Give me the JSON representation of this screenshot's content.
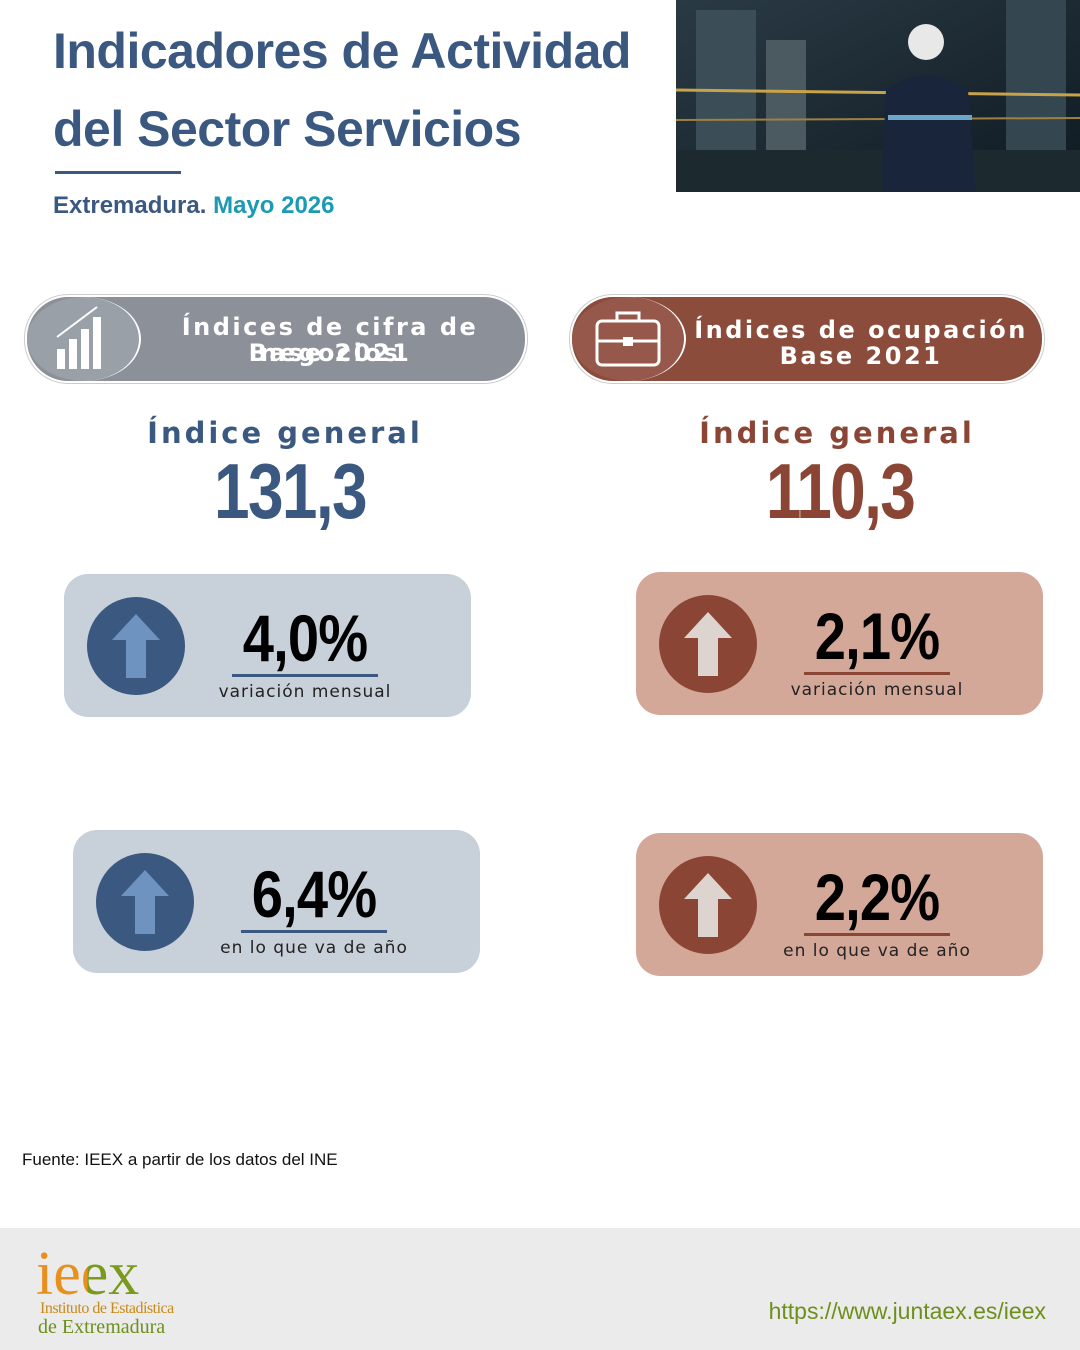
{
  "header": {
    "title_lines": [
      "Indicadores de Actividad",
      "del Sector Servicios"
    ],
    "region": "Extremadura.",
    "period": "Mayo 2026"
  },
  "panels": [
    {
      "heading": [
        "Índices de cifra de negocios",
        "Base 2021"
      ],
      "index_label": "Índice general",
      "index_value": "131,3",
      "cards": [
        {
          "value": "4,0%",
          "label": "variación mensual"
        },
        {
          "value": "6,4%",
          "label": "en lo que va de año"
        }
      ]
    },
    {
      "heading": [
        "Índices de ocupación",
        "Base 2021"
      ],
      "index_label": "Índice general",
      "index_value": "110,3",
      "cards": [
        {
          "value": "2,1%",
          "label": "variación mensual"
        },
        {
          "value": "2,2%",
          "label": "en lo que va de año"
        }
      ]
    }
  ],
  "source": "Fuente: IEEX a partir de los datos del INE",
  "footer": {
    "logo": "ieex",
    "logo_lines": [
      "Instituto de Estadística",
      "de Extremadura"
    ],
    "url": "https://www.juntaex.es/ieex"
  }
}
